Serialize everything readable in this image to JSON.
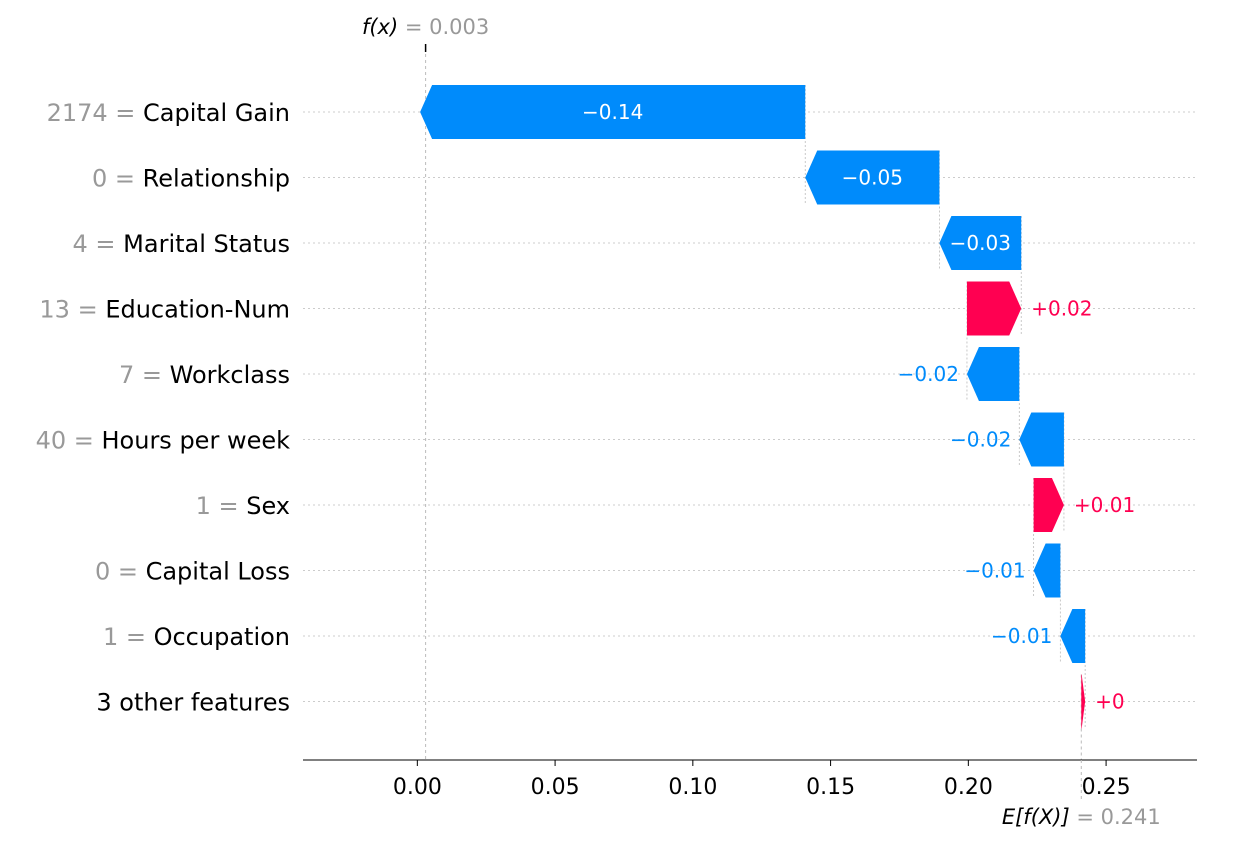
{
  "chart_data": {
    "type": "waterfall",
    "fx_label": "f(x)",
    "fx_value": "= 0.003",
    "efx_label": "E[f(X)]",
    "efx_value": "= 0.241",
    "base_value": 0.241,
    "output_value": 0.003,
    "xlim": [
      -0.0415,
      0.283
    ],
    "x_ticks": [
      0.0,
      0.05,
      0.1,
      0.15,
      0.2,
      0.25
    ],
    "x_tick_labels": [
      "0.00",
      "0.05",
      "0.10",
      "0.15",
      "0.20",
      "0.25"
    ],
    "grid": true,
    "features": [
      {
        "value": "2174",
        "name": "Capital Gain",
        "contribution": -0.1398,
        "label": "−0.14"
      },
      {
        "value": "0",
        "name": "Relationship",
        "contribution": -0.0487,
        "label": "−0.05"
      },
      {
        "value": "4",
        "name": "Marital Status",
        "contribution": -0.0297,
        "label": "−0.03"
      },
      {
        "value": "13",
        "name": "Education-Num",
        "contribution": 0.0197,
        "label": "+0.02"
      },
      {
        "value": "7",
        "name": "Workclass",
        "contribution": -0.019,
        "label": "−0.02"
      },
      {
        "value": "40",
        "name": "Hours per week",
        "contribution": -0.0162,
        "label": "−0.02"
      },
      {
        "value": "1",
        "name": "Sex",
        "contribution": 0.011,
        "label": "+0.01"
      },
      {
        "value": "0",
        "name": "Capital Loss",
        "contribution": -0.0097,
        "label": "−0.01"
      },
      {
        "value": "1",
        "name": "Occupation",
        "contribution": -0.009,
        "label": "−0.01"
      },
      {
        "value": "",
        "name": "3 other features",
        "contribution": 0.0014,
        "label": "+0"
      }
    ],
    "colors": {
      "positive": "#ff0051",
      "negative": "#008bfb",
      "feature_value": "#999999",
      "text": "#000000",
      "grid": "#cccccc"
    }
  }
}
